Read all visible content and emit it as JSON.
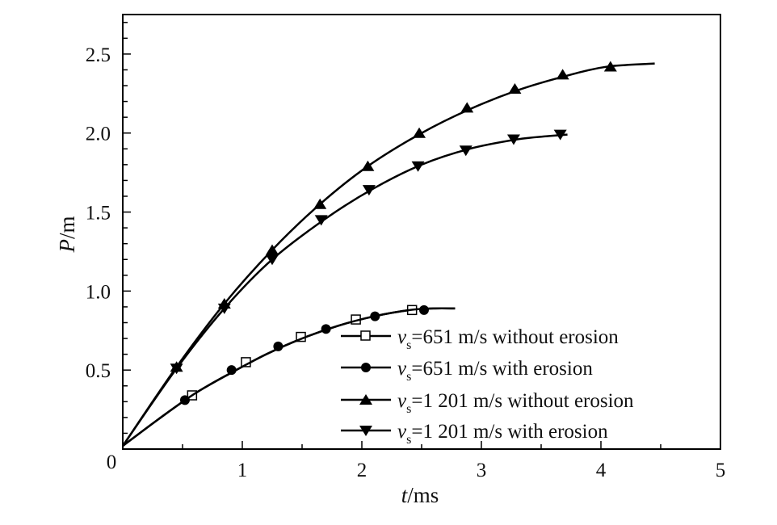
{
  "chart_data": {
    "type": "line",
    "xlabel_var": "t",
    "xlabel_unit": "/ms",
    "ylabel_var": "P",
    "ylabel_unit": "/m",
    "xlim": [
      0,
      5
    ],
    "ylim": [
      0,
      2.75
    ],
    "x_ticks": [
      {
        "value": 1,
        "label": "1"
      },
      {
        "value": 2,
        "label": "2"
      },
      {
        "value": 3,
        "label": "3"
      },
      {
        "value": 4,
        "label": "4"
      },
      {
        "value": 5,
        "label": "5"
      }
    ],
    "y_ticks": [
      {
        "value": 0.5,
        "label": "0.5"
      },
      {
        "value": 1.0,
        "label": "1.0"
      },
      {
        "value": 1.5,
        "label": "1.5"
      },
      {
        "value": 2.0,
        "label": "2.0"
      },
      {
        "value": 2.5,
        "label": "2.5"
      }
    ],
    "origin_label": "0",
    "grid": false,
    "legend_position": "bottom-right",
    "series": [
      {
        "name_var": "v",
        "name_sub": "s",
        "name_rest": "=651 m/s without erosion",
        "marker": "open-square",
        "color": "#000000",
        "curve": [
          [
            0,
            0.02
          ],
          [
            0.3,
            0.19
          ],
          [
            0.6,
            0.35
          ],
          [
            0.9,
            0.48
          ],
          [
            1.2,
            0.6
          ],
          [
            1.5,
            0.7
          ],
          [
            1.8,
            0.78
          ],
          [
            2.1,
            0.84
          ],
          [
            2.4,
            0.88
          ],
          [
            2.6,
            0.89
          ],
          [
            2.78,
            0.89
          ]
        ],
        "markers": [
          [
            0.58,
            0.34
          ],
          [
            1.03,
            0.55
          ],
          [
            1.49,
            0.71
          ],
          [
            1.95,
            0.82
          ],
          [
            2.42,
            0.88
          ]
        ]
      },
      {
        "name_var": "v",
        "name_sub": "s",
        "name_rest": "=651 m/s with erosion",
        "marker": "filled-circle",
        "color": "#000000",
        "curve": [
          [
            0,
            0.02
          ],
          [
            0.3,
            0.19
          ],
          [
            0.6,
            0.35
          ],
          [
            0.9,
            0.48
          ],
          [
            1.2,
            0.6
          ],
          [
            1.5,
            0.7
          ],
          [
            1.8,
            0.78
          ],
          [
            2.1,
            0.84
          ],
          [
            2.4,
            0.88
          ],
          [
            2.6,
            0.89
          ],
          [
            2.78,
            0.89
          ]
        ],
        "markers": [
          [
            0.52,
            0.31
          ],
          [
            0.91,
            0.5
          ],
          [
            1.3,
            0.65
          ],
          [
            1.7,
            0.76
          ],
          [
            2.11,
            0.84
          ],
          [
            2.52,
            0.88
          ]
        ]
      },
      {
        "name_var": "v",
        "name_sub": "s",
        "name_rest": "=1 201 m/s without erosion",
        "marker": "filled-triangle-up",
        "color": "#000000",
        "curve": [
          [
            0,
            0.02
          ],
          [
            0.45,
            0.52
          ],
          [
            0.85,
            0.92
          ],
          [
            1.25,
            1.26
          ],
          [
            1.65,
            1.55
          ],
          [
            2.05,
            1.79
          ],
          [
            2.5,
            2.0
          ],
          [
            2.9,
            2.15
          ],
          [
            3.3,
            2.27
          ],
          [
            3.7,
            2.36
          ],
          [
            4.05,
            2.42
          ],
          [
            4.45,
            2.44
          ]
        ],
        "markers": [
          [
            0.45,
            0.52
          ],
          [
            0.85,
            0.92
          ],
          [
            1.25,
            1.26
          ],
          [
            1.65,
            1.55
          ],
          [
            2.05,
            1.79
          ],
          [
            2.48,
            2.0
          ],
          [
            2.88,
            2.16
          ],
          [
            3.28,
            2.28
          ],
          [
            3.68,
            2.37
          ],
          [
            4.08,
            2.42
          ]
        ]
      },
      {
        "name_var": "v",
        "name_sub": "s",
        "name_rest": "=1 201 m/s with erosion",
        "marker": "filled-triangle-down",
        "color": "#000000",
        "curve": [
          [
            0,
            0.02
          ],
          [
            0.45,
            0.51
          ],
          [
            0.85,
            0.89
          ],
          [
            1.25,
            1.2
          ],
          [
            1.7,
            1.46
          ],
          [
            2.1,
            1.65
          ],
          [
            2.5,
            1.8
          ],
          [
            2.9,
            1.9
          ],
          [
            3.3,
            1.96
          ],
          [
            3.55,
            1.98
          ],
          [
            3.72,
            1.99
          ]
        ],
        "markers": [
          [
            0.45,
            0.51
          ],
          [
            0.85,
            0.89
          ],
          [
            1.25,
            1.2
          ],
          [
            1.66,
            1.45
          ],
          [
            2.06,
            1.64
          ],
          [
            2.47,
            1.79
          ],
          [
            2.87,
            1.89
          ],
          [
            3.27,
            1.96
          ],
          [
            3.66,
            1.99
          ]
        ]
      }
    ]
  }
}
